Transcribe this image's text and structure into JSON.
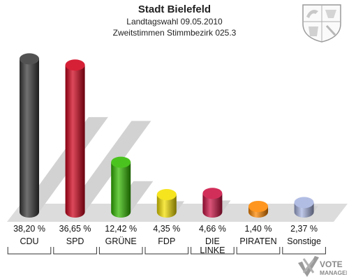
{
  "header": {
    "title": "Stadt Bielefeld",
    "subtitle": "Landtagswahl 09.05.2010",
    "subsubtitle": "Zweitstimmen Stimmbezirk 025.3"
  },
  "logo": {
    "line1": "VOTE",
    "line2": "MANAGER"
  },
  "chart_data": {
    "type": "bar",
    "categories": [
      "CDU",
      "SPD",
      "GRÜNE",
      "FDP",
      "DIE LINKE",
      "PIRATEN",
      "Sonstige"
    ],
    "category_lines": [
      [
        "CDU"
      ],
      [
        "SPD"
      ],
      [
        "GRÜNE"
      ],
      [
        "FDP"
      ],
      [
        "DIE",
        "LINKE"
      ],
      [
        "PIRATEN"
      ],
      [
        "Sonstige"
      ]
    ],
    "values": [
      38.2,
      36.65,
      12.42,
      4.35,
      4.66,
      1.4,
      2.37
    ],
    "value_labels": [
      "38,20 %",
      "36,65 %",
      "12,42 %",
      "4,35 %",
      "4,66 %",
      "1,40 %",
      "2,37 %"
    ],
    "colors": [
      "#3a3a3a",
      "#d0021b",
      "#33bb00",
      "#f5e000",
      "#cc1144",
      "#ff8800",
      "#a8b4e0"
    ],
    "ylim": [
      0,
      40
    ],
    "grid": false,
    "legend": "none"
  }
}
